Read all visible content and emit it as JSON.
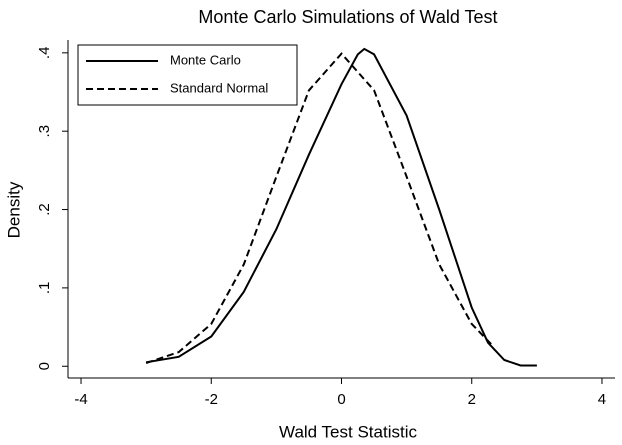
{
  "chart_data": {
    "type": "line",
    "title": "Monte Carlo Simulations of Wald Test",
    "x_label": "Wald Test Statistic",
    "y_label": "Density",
    "series": [
      {
        "name": "Monte Carlo",
        "color": "#000000",
        "dash": false,
        "x": [
          -3,
          -2.5,
          -2,
          -1.5,
          -1,
          -0.5,
          0,
          0.25,
          0.35,
          0.5,
          1,
          1.5,
          2,
          2.25,
          2.5,
          2.75,
          3
        ],
        "values": [
          0.005,
          0.012,
          0.038,
          0.095,
          0.175,
          0.27,
          0.36,
          0.398,
          0.405,
          0.398,
          0.32,
          0.2,
          0.075,
          0.03,
          0.008,
          0.001,
          0.001
        ]
      },
      {
        "name": "Standard Normal",
        "color": "#000000",
        "dash": true,
        "x": [
          -3,
          -2.5,
          -2,
          -1.5,
          -1,
          -0.5,
          0,
          0.5,
          1,
          1.5,
          2,
          2.3
        ],
        "values": [
          0.004,
          0.018,
          0.054,
          0.13,
          0.242,
          0.352,
          0.399,
          0.352,
          0.242,
          0.13,
          0.054,
          0.028
        ]
      }
    ],
    "xlim": [
      -4.2,
      4.2
    ],
    "xticks": [
      -4,
      -2,
      0,
      2,
      4
    ],
    "ylim": [
      -0.015,
      0.41
    ],
    "yticks": [
      0,
      {
        "value": 0.1,
        "label": ".1"
      },
      {
        "value": 0.2,
        "label": ".2"
      },
      {
        "value": 0.3,
        "label": ".3"
      },
      {
        "value": 0.4,
        "label": ".4"
      }
    ],
    "legend": "top-left"
  }
}
